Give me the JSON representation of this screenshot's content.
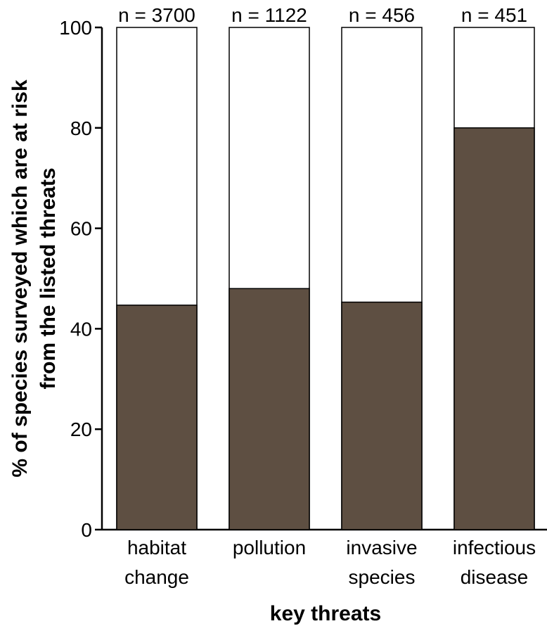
{
  "chart_data": {
    "type": "bar",
    "stacked": true,
    "categories": [
      [
        "habitat",
        "change"
      ],
      [
        "pollution"
      ],
      [
        "invasive",
        "species"
      ],
      [
        "infectious",
        "disease"
      ]
    ],
    "sample_sizes": [
      "n = 3700",
      "n = 1122",
      "n = 456",
      "n = 451"
    ],
    "values": [
      44.7,
      48.0,
      45.3,
      80.0
    ],
    "total": 100,
    "ylim": [
      0,
      100
    ],
    "yticks": [
      0,
      20,
      40,
      60,
      80,
      100
    ],
    "xlabel": "key threats",
    "ylabel": [
      "% of species surveyed which are at risk",
      "from the listed threats"
    ],
    "grid": false,
    "colors": {
      "at_risk": "#5e4f42",
      "remainder": "#ffffff",
      "outline": "#000000"
    }
  }
}
